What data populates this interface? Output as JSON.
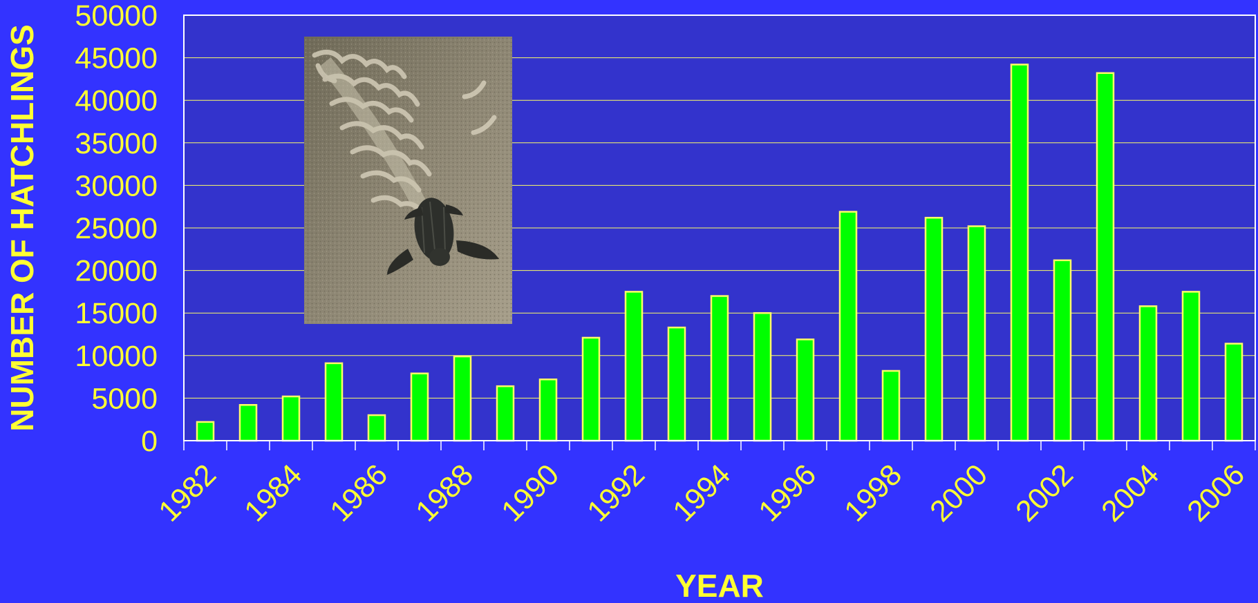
{
  "chart_data": {
    "type": "bar",
    "title": "",
    "xlabel": "YEAR",
    "ylabel": "NUMBER OF HATCHLINGS",
    "ylim": [
      0,
      50000
    ],
    "yticks": [
      0,
      5000,
      10000,
      15000,
      20000,
      25000,
      30000,
      35000,
      40000,
      45000,
      50000
    ],
    "ytick_labels": [
      "0",
      "5000",
      "10000",
      "15000",
      "20000",
      "25000",
      "30000",
      "35000",
      "40000",
      "45000",
      "50000"
    ],
    "xtick_labels": [
      "1982",
      "1984",
      "1986",
      "1988",
      "1990",
      "1992",
      "1994",
      "1996",
      "1998",
      "2000",
      "2002",
      "2004",
      "2006"
    ],
    "categories": [
      "1982",
      "1983",
      "1984",
      "1985",
      "1986",
      "1987",
      "1988",
      "1989",
      "1990",
      "1991",
      "1992",
      "1993",
      "1994",
      "1995",
      "1996",
      "1997",
      "1998",
      "1999",
      "2000",
      "2001",
      "2002",
      "2003",
      "2004",
      "2005",
      "2006"
    ],
    "values": [
      2200,
      4200,
      5200,
      9100,
      3000,
      7900,
      9900,
      6400,
      7200,
      12100,
      17500,
      13300,
      17000,
      15000,
      11900,
      26900,
      8200,
      26200,
      25200,
      44200,
      21200,
      43200,
      15800,
      17500,
      11400
    ],
    "grid": true,
    "legend": "none",
    "colors": {
      "background": "#3333ff",
      "plot_area": "#3333cc",
      "bar_fill": "#00ff00",
      "bar_edge": "#ffff66",
      "text": "#ffff33",
      "grid": "#ffff66",
      "frame": "#ffffff"
    }
  },
  "inset_photo": {
    "subject": "leatherback turtle hatchling crawling on sand"
  }
}
